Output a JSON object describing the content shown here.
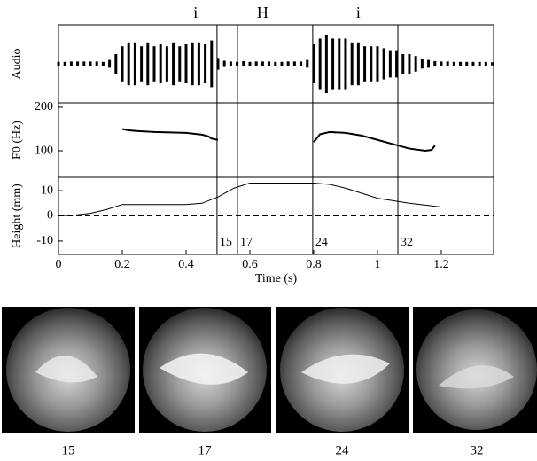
{
  "chart_data": [
    {
      "type": "waveform",
      "ylabel": "Audio",
      "x": [
        0,
        0.02,
        0.04,
        0.06,
        0.08,
        0.1,
        0.12,
        0.14,
        0.16,
        0.18,
        0.2,
        0.22,
        0.24,
        0.26,
        0.28,
        0.3,
        0.32,
        0.34,
        0.36,
        0.38,
        0.4,
        0.42,
        0.44,
        0.46,
        0.48,
        0.5,
        0.52,
        0.54,
        0.56,
        0.58,
        0.6,
        0.62,
        0.64,
        0.66,
        0.68,
        0.7,
        0.72,
        0.74,
        0.76,
        0.78,
        0.8,
        0.82,
        0.84,
        0.86,
        0.88,
        0.9,
        0.92,
        0.94,
        0.96,
        0.98,
        1.0,
        1.02,
        1.04,
        1.06,
        1.08,
        1.1,
        1.12,
        1.14,
        1.16,
        1.18,
        1.2,
        1.22,
        1.24,
        1.26,
        1.28,
        1.3,
        1.32,
        1.34,
        1.36
      ],
      "values": [
        0.05,
        0.05,
        0.06,
        0.06,
        0.06,
        0.06,
        0.06,
        0.05,
        0.1,
        0.25,
        0.45,
        0.55,
        0.55,
        0.45,
        0.55,
        0.45,
        0.5,
        0.45,
        0.55,
        0.45,
        0.5,
        0.55,
        0.55,
        0.5,
        0.6,
        0.15,
        0.08,
        0.06,
        0.05,
        0.07,
        0.05,
        0.06,
        0.06,
        0.06,
        0.05,
        0.05,
        0.06,
        0.06,
        0.06,
        0.1,
        0.5,
        0.65,
        0.75,
        0.65,
        0.65,
        0.65,
        0.55,
        0.55,
        0.45,
        0.45,
        0.45,
        0.4,
        0.35,
        0.35,
        0.25,
        0.25,
        0.2,
        0.12,
        0.1,
        0.07,
        0.06,
        0.06,
        0.05,
        0.05,
        0.05,
        0.05,
        0.05,
        0.05,
        0.04
      ],
      "color": "#000000",
      "xlim": [
        0,
        1.364
      ],
      "ylim": [
        -1,
        1
      ],
      "annotations": [
        {
          "text": "i",
          "x": 0.43
        },
        {
          "text": "H",
          "x": 0.64
        },
        {
          "text": "i",
          "x": 0.94
        }
      ]
    },
    {
      "type": "line",
      "ylabel": "F0 (Hz)",
      "x": [
        0.2,
        0.22,
        0.25,
        0.3,
        0.35,
        0.4,
        0.45,
        0.47,
        0.48,
        0.5,
        0.65,
        0.8,
        0.82,
        0.85,
        0.9,
        0.95,
        1.0,
        1.05,
        1.1,
        1.15,
        1.17,
        1.18
      ],
      "values": [
        150,
        147,
        145,
        143,
        142,
        141,
        137,
        133,
        128,
        125,
        null,
        120,
        138,
        143,
        141,
        135,
        125,
        115,
        105,
        100,
        102,
        112
      ],
      "color": "#000000",
      "xlim": [
        0,
        1.364
      ],
      "ylim": [
        39,
        210
      ],
      "yticks": [
        100,
        200
      ]
    },
    {
      "type": "line",
      "ylabel": "Height (mm)",
      "xlabel": "Time (s)",
      "x": [
        0,
        0.05,
        0.1,
        0.15,
        0.2,
        0.3,
        0.4,
        0.45,
        0.5,
        0.55,
        0.6,
        0.7,
        0.8,
        0.85,
        0.9,
        1.0,
        1.1,
        1.2,
        1.3,
        1.364
      ],
      "values": [
        0,
        0.3,
        1,
        2.5,
        4.5,
        4.5,
        4.5,
        5,
        7.5,
        11,
        13,
        13,
        13,
        12.5,
        11,
        7,
        5,
        3.5,
        3.5,
        3.5
      ],
      "color": "#000000",
      "xlim": [
        0,
        1.364
      ],
      "ylim": [
        -15.3,
        15.3
      ],
      "yticks": [
        -10,
        0,
        10
      ],
      "xticks": [
        0,
        0.2,
        0.4,
        0.6,
        0.8,
        1,
        1.2
      ],
      "reference_line": 0,
      "markers": [
        {
          "label": "15",
          "x": 0.497
        },
        {
          "label": "17",
          "x": 0.561
        },
        {
          "label": "24",
          "x": 0.797
        },
        {
          "label": "32",
          "x": 1.064
        }
      ]
    }
  ],
  "frames": [
    {
      "label": "15"
    },
    {
      "label": "17"
    },
    {
      "label": "24"
    },
    {
      "label": "32"
    }
  ]
}
